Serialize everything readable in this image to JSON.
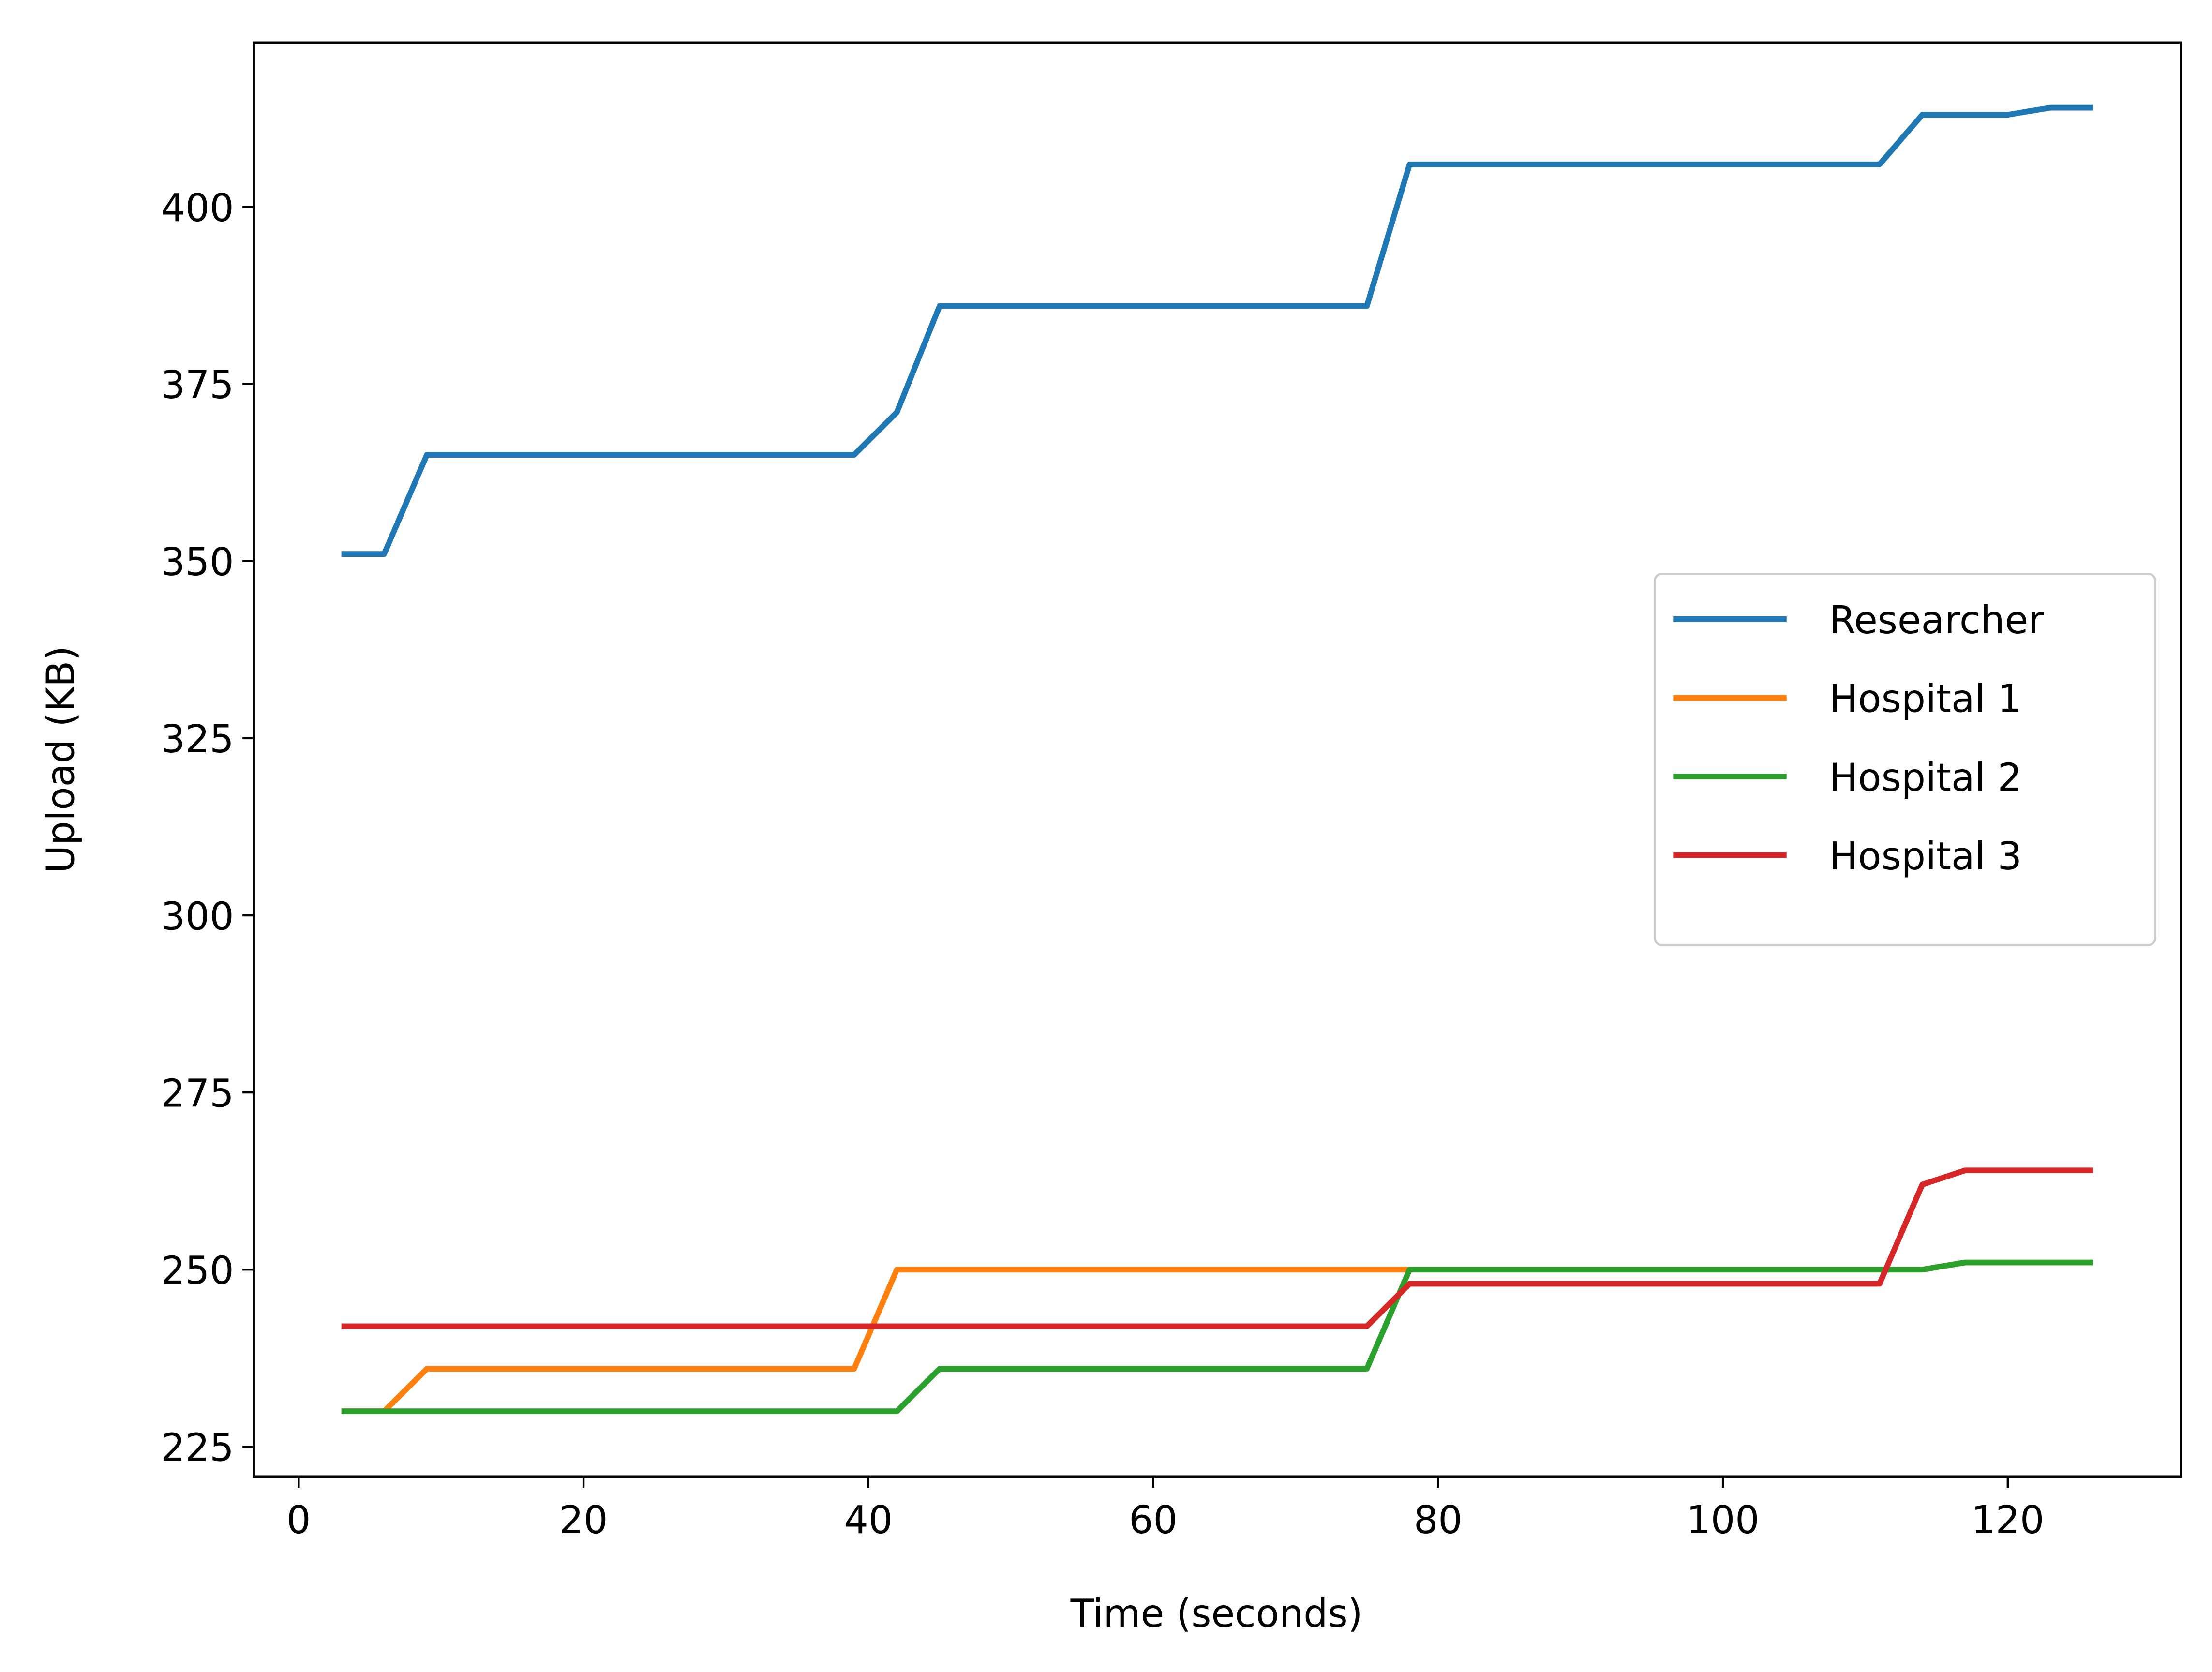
{
  "chart_data": {
    "type": "line",
    "xlabel": "Time (seconds)",
    "ylabel": "Upload (KB)",
    "x": [
      3,
      6,
      9,
      12,
      15,
      18,
      21,
      24,
      27,
      30,
      33,
      36,
      39,
      42,
      45,
      48,
      51,
      54,
      57,
      60,
      63,
      66,
      69,
      72,
      75,
      78,
      81,
      84,
      87,
      90,
      93,
      96,
      99,
      102,
      105,
      108,
      111,
      114,
      117,
      120,
      123,
      126
    ],
    "series": [
      {
        "name": "Researcher",
        "color": "#1f77b4",
        "values": [
          351,
          351,
          365,
          365,
          365,
          365,
          365,
          365,
          365,
          365,
          365,
          365,
          365,
          371,
          386,
          386,
          386,
          386,
          386,
          386,
          386,
          386,
          386,
          386,
          386,
          406,
          406,
          406,
          406,
          406,
          406,
          406,
          406,
          406,
          406,
          406,
          406,
          413,
          413,
          413,
          414,
          414
        ]
      },
      {
        "name": "Hospital 1",
        "color": "#ff7f0e",
        "values": [
          230,
          230,
          236,
          236,
          236,
          236,
          236,
          236,
          236,
          236,
          236,
          236,
          236,
          250,
          250,
          250,
          250,
          250,
          250,
          250,
          250,
          250,
          250,
          250,
          250,
          250,
          250,
          250,
          250,
          250,
          250,
          250,
          250,
          250,
          250,
          250,
          250,
          250,
          251,
          251,
          251,
          251
        ]
      },
      {
        "name": "Hospital 2",
        "color": "#2ca02c",
        "values": [
          230,
          230,
          230,
          230,
          230,
          230,
          230,
          230,
          230,
          230,
          230,
          230,
          230,
          230,
          236,
          236,
          236,
          236,
          236,
          236,
          236,
          236,
          236,
          236,
          236,
          250,
          250,
          250,
          250,
          250,
          250,
          250,
          250,
          250,
          250,
          250,
          250,
          250,
          251,
          251,
          251,
          251
        ]
      },
      {
        "name": "Hospital 3",
        "color": "#d62728",
        "values": [
          242,
          242,
          242,
          242,
          242,
          242,
          242,
          242,
          242,
          242,
          242,
          242,
          242,
          242,
          242,
          242,
          242,
          242,
          242,
          242,
          242,
          242,
          242,
          242,
          242,
          248,
          248,
          248,
          248,
          248,
          248,
          248,
          248,
          248,
          248,
          248,
          248,
          262,
          264,
          264,
          264,
          264
        ]
      }
    ],
    "xlim": [
      -3.15,
      132.15
    ],
    "xticks": [
      0,
      20,
      40,
      60,
      80,
      100,
      120
    ],
    "ylim": [
      220.8,
      423.2
    ],
    "yticks": [
      225,
      250,
      275,
      300,
      325,
      350,
      375,
      400
    ],
    "legend": "center right",
    "grid": false
  }
}
